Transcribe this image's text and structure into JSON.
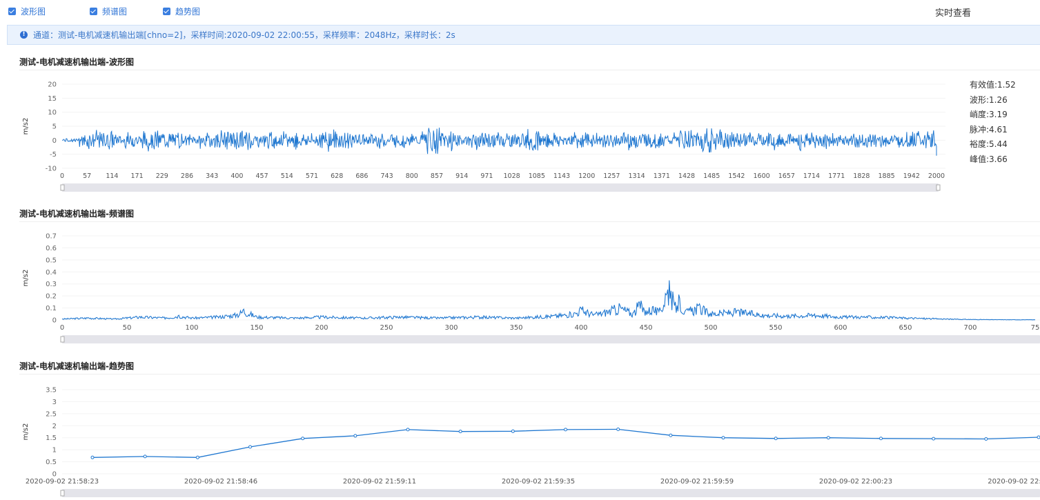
{
  "checkboxes": [
    {
      "label": "波形图",
      "checked": true
    },
    {
      "label": "频谱图",
      "checked": true
    },
    {
      "label": "趋势图",
      "checked": true
    }
  ],
  "realtime_label": "实时查看",
  "info_text": "通道：测试-电机减速机输出端[chno=2]，采样时间:2020-09-02 22:00:55，采样频率：2048Hz，采样时长：2s",
  "colors": {
    "accent": "#1f77d0",
    "info_bg": "#eaf2fd"
  },
  "stats": [
    "有效值:1.52",
    "波形:1.26",
    "峭度:3.19",
    "脉冲:4.61",
    "裕度:5.44",
    "峰值:3.66"
  ],
  "chart_data": [
    {
      "type": "line",
      "title": "测试-电机减速机输出端-波形图",
      "ylabel": "m/s2",
      "ylim": [
        -10,
        20
      ],
      "yticks": [
        "20",
        "15",
        "10",
        "5",
        "0",
        "-5",
        "-10"
      ],
      "xticks": [
        "0",
        "57",
        "114",
        "171",
        "229",
        "286",
        "343",
        "400",
        "457",
        "514",
        "571",
        "628",
        "686",
        "743",
        "800",
        "857",
        "914",
        "971",
        "1028",
        "1085",
        "1143",
        "1200",
        "1257",
        "1314",
        "1371",
        "1428",
        "1485",
        "1542",
        "1600",
        "1657",
        "1714",
        "1771",
        "1828",
        "1885",
        "1942",
        "2000"
      ],
      "series": [
        {
          "values": [
            0,
            3.5,
            -4,
            2.8,
            -3.2,
            4.2,
            -3.6,
            2.1,
            -2.8,
            3.8,
            -4.5,
            2.5,
            -3.1,
            3.3,
            -2.6,
            4.6,
            -3.9,
            2.2,
            -3.4,
            3.1,
            -2.4,
            5.1,
            -4.2,
            2.7,
            -3.3,
            3.6,
            -2.9,
            4.4,
            -3.7,
            2.6,
            -3.0,
            3.2,
            -2.5,
            4.0,
            -3.5,
            2.3,
            -3.8,
            5.5,
            -4.1,
            2.9,
            -3.2,
            3.4,
            -2.7,
            4.1,
            -3.6,
            2.4,
            -3.1,
            3.0,
            -2.6,
            3.9,
            -3.4,
            -5.5
          ]
        }
      ]
    },
    {
      "type": "line",
      "title": "测试-电机减速机输出端-频谱图",
      "ylabel": "m/s2",
      "ylim": [
        0,
        0.7
      ],
      "yticks": [
        "0.7",
        "0.6",
        "0.5",
        "0.4",
        "0.3",
        "0.2",
        "0.1",
        "0"
      ],
      "xticks": [
        "0",
        "50",
        "100",
        "150",
        "200",
        "250",
        "300",
        "350",
        "400",
        "450",
        "500",
        "550",
        "600",
        "650",
        "700",
        "75"
      ],
      "series": [
        {
          "x": [
            0,
            20,
            40,
            60,
            80,
            90,
            100,
            120,
            135,
            140,
            150,
            180,
            200,
            230,
            260,
            290,
            320,
            350,
            380,
            395,
            400,
            410,
            420,
            430,
            440,
            445,
            450,
            455,
            460,
            465,
            468,
            472,
            476,
            480,
            490,
            500,
            520,
            540,
            560,
            580,
            600,
            620,
            650,
            680,
            700,
            720,
            750
          ],
          "values": [
            0.01,
            0.02,
            0.01,
            0.03,
            0.02,
            0.04,
            0.02,
            0.03,
            0.05,
            0.09,
            0.03,
            0.02,
            0.03,
            0.02,
            0.03,
            0.02,
            0.03,
            0.02,
            0.04,
            0.06,
            0.1,
            0.05,
            0.08,
            0.12,
            0.06,
            0.15,
            0.08,
            0.11,
            0.07,
            0.22,
            0.33,
            0.12,
            0.18,
            0.07,
            0.12,
            0.06,
            0.08,
            0.05,
            0.04,
            0.05,
            0.03,
            0.03,
            0.02,
            0.01,
            0.005,
            0.003,
            0.002
          ]
        }
      ]
    },
    {
      "type": "line",
      "title": "测试-电机减速机输出端-趋势图",
      "ylabel": "m/s2",
      "ylim": [
        0,
        3.5
      ],
      "yticks": [
        "3.5",
        "3",
        "2.5",
        "2",
        "1.5",
        "1",
        "0.5",
        "0"
      ],
      "xticks": [
        "2020-09-02 21:58:23",
        "2020-09-02 21:58:46",
        "2020-09-02 21:59:11",
        "2020-09-02 21:59:35",
        "2020-09-02 21:59:59",
        "2020-09-02 22:00:23",
        "2020-09-02 22:"
      ],
      "series": [
        {
          "values": [
            0.68,
            0.72,
            0.68,
            1.12,
            1.47,
            1.58,
            1.84,
            1.76,
            1.77,
            1.84,
            1.85,
            1.6,
            1.5,
            1.47,
            1.5,
            1.47,
            1.46,
            1.45,
            1.52
          ]
        }
      ]
    }
  ]
}
